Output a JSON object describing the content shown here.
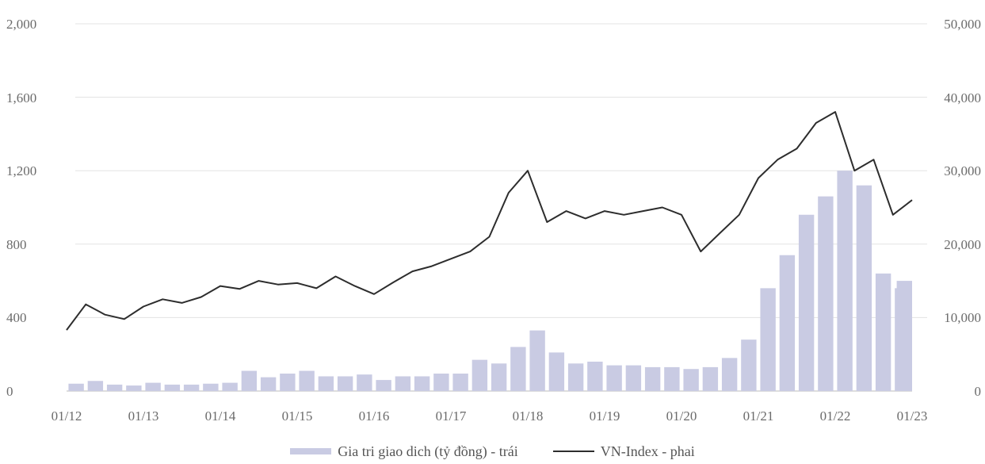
{
  "chart_data": {
    "type": "line",
    "title": "",
    "x_ticks": [
      "01/12",
      "01/13",
      "01/14",
      "01/15",
      "01/16",
      "01/17",
      "01/18",
      "01/19",
      "01/20",
      "01/21",
      "01/22",
      "01/23"
    ],
    "left_ticks": [
      "2,000",
      "1,600",
      "1,200",
      "800",
      "400",
      "0"
    ],
    "right_ticks": [
      "50,000",
      "40,000",
      "30,000",
      "20,000",
      "10,000",
      "0"
    ],
    "left_ylim": [
      0,
      2000
    ],
    "right_ylim": [
      0,
      50000
    ],
    "grid": true,
    "legend_position": "bottom",
    "series": [
      {
        "name": "Gia tri giao dich (tỷ đồng) - trái",
        "type": "bar",
        "color": "#c9cbe3",
        "x": [
          "01/12",
          "04/12",
          "07/12",
          "10/12",
          "01/13",
          "04/13",
          "07/13",
          "10/13",
          "01/14",
          "04/14",
          "07/14",
          "10/14",
          "01/15",
          "04/15",
          "07/15",
          "10/15",
          "01/16",
          "04/16",
          "07/16",
          "10/16",
          "01/17",
          "04/17",
          "07/17",
          "10/17",
          "01/18",
          "04/18",
          "07/18",
          "10/18",
          "01/19",
          "04/19",
          "07/19",
          "10/19",
          "01/20",
          "04/20",
          "07/20",
          "10/20",
          "01/21",
          "04/21",
          "07/21",
          "10/21",
          "01/22",
          "04/22",
          "07/22",
          "10/22",
          "01/23"
        ],
        "values": [
          40,
          55,
          35,
          30,
          45,
          35,
          35,
          40,
          45,
          110,
          75,
          95,
          110,
          80,
          80,
          90,
          60,
          80,
          80,
          95,
          95,
          170,
          150,
          240,
          330,
          210,
          150,
          160,
          140,
          140,
          130,
          130,
          120,
          130,
          180,
          280,
          560,
          740,
          960,
          1060,
          1200,
          1120,
          640,
          560,
          600
        ]
      },
      {
        "name": "VN-Index - phai",
        "type": "line",
        "color": "#2d2d2d",
        "x": [
          "01/12",
          "04/12",
          "07/12",
          "10/12",
          "01/13",
          "04/13",
          "07/13",
          "10/13",
          "01/14",
          "04/14",
          "07/14",
          "10/14",
          "01/15",
          "04/15",
          "07/15",
          "10/15",
          "01/16",
          "04/16",
          "07/16",
          "10/16",
          "01/17",
          "04/17",
          "07/17",
          "10/17",
          "01/18",
          "04/18",
          "07/18",
          "10/18",
          "01/19",
          "04/19",
          "07/19",
          "10/19",
          "01/20",
          "04/20",
          "07/20",
          "10/20",
          "01/21",
          "04/21",
          "07/21",
          "10/21",
          "01/22",
          "04/22",
          "07/22",
          "10/22",
          "01/23"
        ],
        "values": [
          8300,
          11800,
          10400,
          9800,
          11500,
          12500,
          12000,
          12800,
          14300,
          13900,
          15000,
          14500,
          14700,
          14000,
          15600,
          14300,
          13200,
          14800,
          16300,
          17000,
          18000,
          19000,
          21000,
          27000,
          30000,
          23000,
          24500,
          23500,
          24500,
          24000,
          24500,
          25000,
          24000,
          19000,
          21500,
          24000,
          29000,
          31500,
          33000,
          36500,
          38000,
          30000,
          31500,
          24000,
          26000
        ]
      }
    ]
  }
}
